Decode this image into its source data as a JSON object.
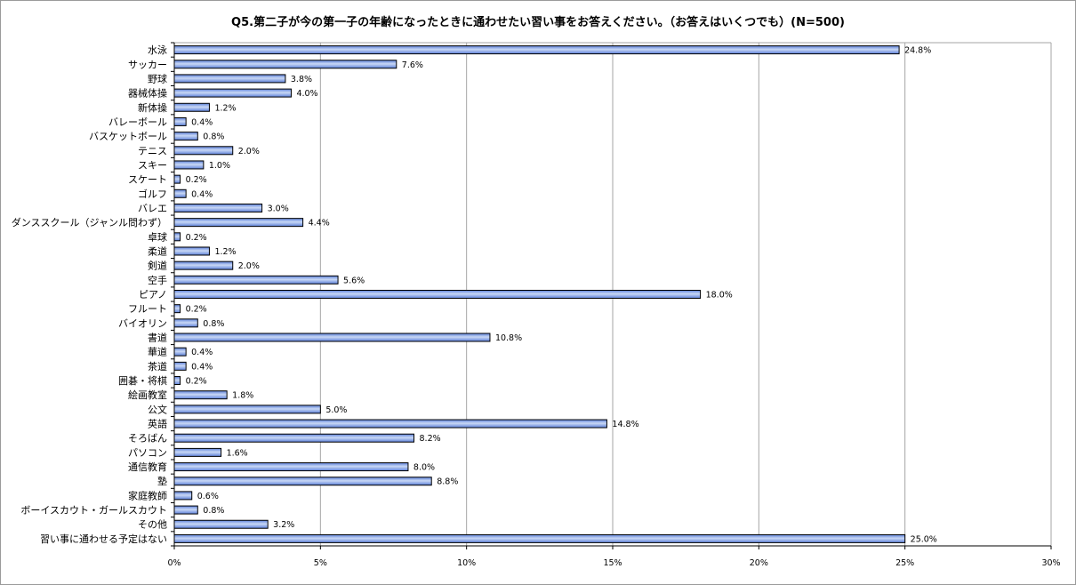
{
  "chart_data": {
    "type": "bar",
    "orientation": "horizontal",
    "title": "Q5.第二子が今の第一子の年齢になったときに通わせたい習い事をお答えください。（お答えはいくつでも）(N=500)",
    "xlabel": "",
    "ylabel": "",
    "xlim": [
      0,
      30
    ],
    "x_ticks": [
      "0%",
      "5%",
      "10%",
      "15%",
      "20%",
      "25%",
      "30%"
    ],
    "x_tick_values": [
      0,
      5,
      10,
      15,
      20,
      25,
      30
    ],
    "grid": "vertical",
    "legend": "none",
    "bar_color": "#5b7fd9",
    "bar_highlight": "#c9d8f5",
    "bar_border": "#000000",
    "grid_color": "#a6a6a6",
    "categories": [
      "水泳",
      "サッカー",
      "野球",
      "器械体操",
      "新体操",
      "バレーボール",
      "バスケットボール",
      "テニス",
      "スキー",
      "スケート",
      "ゴルフ",
      "バレエ",
      "ダンススクール（ジャンル問わず）",
      "卓球",
      "柔道",
      "剣道",
      "空手",
      "ピアノ",
      "フルート",
      "バイオリン",
      "書道",
      "華道",
      "茶道",
      "囲碁・将棋",
      "絵画教室",
      "公文",
      "英語",
      "そろばん",
      "パソコン",
      "通信教育",
      "塾",
      "家庭教師",
      "ボーイスカウト・ガールスカウト",
      "その他",
      "習い事に通わせる予定はない"
    ],
    "values": [
      24.8,
      7.6,
      3.8,
      4.0,
      1.2,
      0.4,
      0.8,
      2.0,
      1.0,
      0.2,
      0.4,
      3.0,
      4.4,
      0.2,
      1.2,
      2.0,
      5.6,
      18.0,
      0.2,
      0.8,
      10.8,
      0.4,
      0.4,
      0.2,
      1.8,
      5.0,
      14.8,
      8.2,
      1.6,
      8.0,
      8.8,
      0.6,
      0.8,
      3.2,
      25.0
    ],
    "data_labels": [
      "24.8%",
      "7.6%",
      "3.8%",
      "4.0%",
      "1.2%",
      "0.4%",
      "0.8%",
      "2.0%",
      "1.0%",
      "0.2%",
      "0.4%",
      "3.0%",
      "4.4%",
      "0.2%",
      "1.2%",
      "2.0%",
      "5.6%",
      "18.0%",
      "0.2%",
      "0.8%",
      "10.8%",
      "0.4%",
      "0.4%",
      "0.2%",
      "1.8%",
      "5.0%",
      "14.8%",
      "8.2%",
      "1.6%",
      "8.0%",
      "8.8%",
      "0.6%",
      "0.8%",
      "3.2%",
      "25.0%"
    ]
  }
}
